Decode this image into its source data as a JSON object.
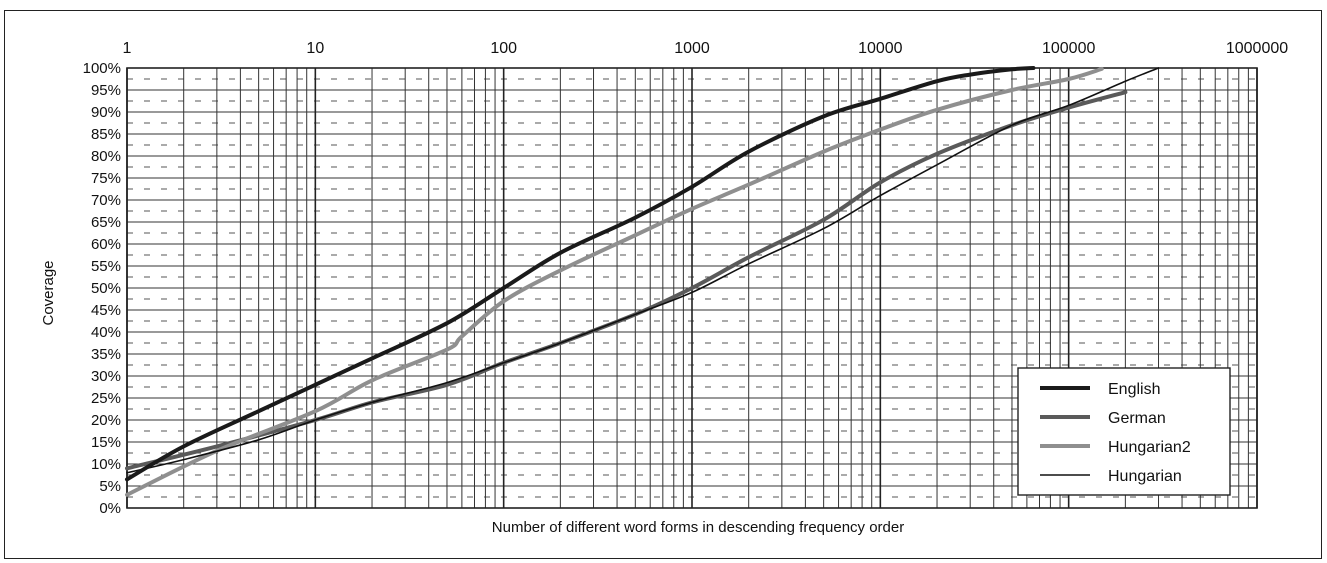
{
  "chart_data": {
    "type": "line",
    "xscale": "log",
    "xlim": [
      1,
      1000000
    ],
    "ylim": [
      0,
      100
    ],
    "x_tick_labels": [
      "1",
      "10",
      "100",
      "1000",
      "10000",
      "100000",
      "1000000"
    ],
    "y_tick_labels": [
      "0%",
      "5%",
      "10%",
      "15%",
      "20%",
      "25%",
      "30%",
      "35%",
      "40%",
      "45%",
      "50%",
      "55%",
      "60%",
      "65%",
      "70%",
      "75%",
      "80%",
      "85%",
      "90%",
      "95%",
      "100%"
    ],
    "xlabel": "Number of different word forms in descending frequency order",
    "ylabel": "Coverage",
    "grid": true,
    "legend_position": "bottom-right",
    "series": [
      {
        "name": "English",
        "color": "#1a1a1a",
        "line_style": "thick",
        "x": [
          1,
          2,
          5,
          10,
          20,
          50,
          100,
          200,
          500,
          1000,
          2000,
          5000,
          10000,
          20000,
          30000,
          50000,
          65000
        ],
        "y": [
          6.5,
          14,
          22,
          28,
          34,
          42,
          50,
          58,
          66,
          73,
          81,
          89,
          93,
          97,
          98.5,
          99.7,
          100
        ]
      },
      {
        "name": "German",
        "color": "#5a5a5a",
        "line_style": "thick",
        "x": [
          1,
          3,
          10,
          20,
          50,
          100,
          200,
          500,
          1000,
          2000,
          5000,
          10000,
          20000,
          50000,
          100000,
          200000
        ],
        "y": [
          9,
          14,
          20,
          24,
          28,
          33,
          37.5,
          44,
          50,
          57,
          65.5,
          74,
          80.5,
          87,
          91,
          94.5
        ]
      },
      {
        "name": "Hungarian2",
        "color": "#8f8f8f",
        "line_style": "thick",
        "x": [
          1,
          3,
          10,
          20,
          50,
          60,
          100,
          200,
          500,
          1000,
          2000,
          5000,
          10000,
          20000,
          50000,
          100000,
          150000
        ],
        "y": [
          3,
          13,
          22,
          29,
          36,
          39,
          47,
          54,
          62,
          68,
          73.5,
          81,
          86,
          90.5,
          95,
          97.5,
          99.8
        ]
      },
      {
        "name": "Hungarian",
        "color": "#111111",
        "line_style": "thin",
        "x": [
          1,
          2,
          5,
          10,
          20,
          50,
          100,
          200,
          500,
          1000,
          2000,
          5000,
          10000,
          20000,
          50000,
          100000,
          200000,
          300000
        ],
        "y": [
          8,
          11,
          15.5,
          20,
          24,
          28.5,
          33,
          37.5,
          44,
          49,
          55.5,
          63.5,
          71,
          78,
          87,
          91.5,
          97,
          100
        ]
      }
    ]
  }
}
